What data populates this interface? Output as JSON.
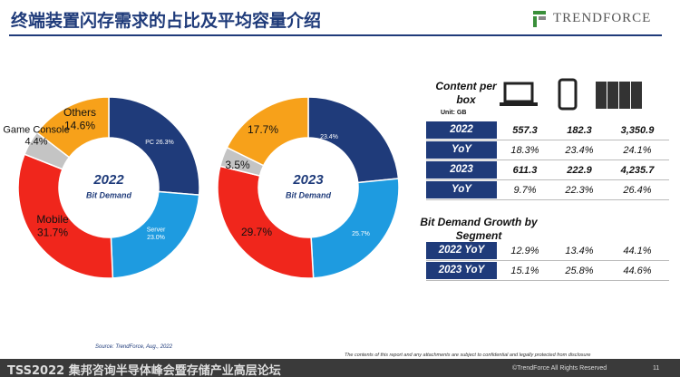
{
  "header": {
    "title": "终端装置闪存需求的占比及平均容量介绍",
    "logo": "TRENDFORCE"
  },
  "chart_data": [
    {
      "type": "donut",
      "center_title": "2022",
      "center_subtitle": "Bit Demand",
      "categories": [
        "PC",
        "Server",
        "Mobile",
        "Game Console",
        "Others"
      ],
      "values": [
        26.3,
        23.0,
        31.7,
        4.4,
        14.6
      ],
      "value_labels": [
        "26.3%",
        "23.0%",
        "31.7%",
        "4.4%",
        "14.6%"
      ],
      "colors": [
        "#1f3b7a",
        "#1e9be0",
        "#f0261c",
        "#c4c4c4",
        "#f7a11a"
      ]
    },
    {
      "type": "donut",
      "center_title": "2023",
      "center_subtitle": "Bit Demand",
      "categories": [
        null,
        null,
        null,
        null,
        null
      ],
      "values": [
        23.4,
        25.7,
        29.7,
        3.5,
        17.7
      ],
      "value_labels": [
        "23.4%",
        "25.7%",
        "29.7%",
        "3.5%",
        "17.7%"
      ],
      "colors": [
        "#1f3b7a",
        "#1e9be0",
        "#f0261c",
        "#c4c4c4",
        "#f7a11a"
      ]
    }
  ],
  "source": "Source: TrendForce, Aug., 2022",
  "table": {
    "title": "Content per box",
    "unit": "Unit: GB",
    "rows": [
      [
        "2022",
        "557.3",
        "182.3",
        "3,350.9"
      ],
      [
        "YoY",
        "18.3%",
        "23.4%",
        "24.1%"
      ],
      [
        "2023",
        "611.3",
        "222.9",
        "4,235.7"
      ],
      [
        "YoY",
        "9.7%",
        "22.3%",
        "26.4%"
      ]
    ]
  },
  "growth": {
    "title": "Bit Demand Growth by Segment",
    "rows": [
      [
        "2022 YoY",
        "12.9%",
        "13.4%",
        "44.1%"
      ],
      [
        "2023 YoY",
        "15.1%",
        "25.8%",
        "44.6%"
      ]
    ]
  },
  "footer": {
    "event": "TSS2022 集邦咨询半导体峰会暨存储产业高层论坛",
    "disclaimer": "The contents of this report and any attachments are subject to confidential and legally protected from disclosure",
    "copyright": "©TrendForce All Rights Reserved",
    "page": "11"
  }
}
